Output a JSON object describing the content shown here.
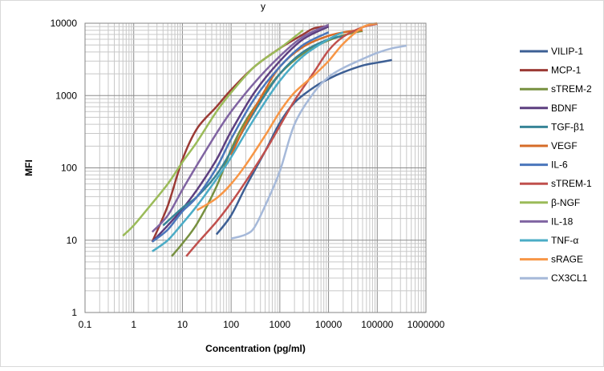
{
  "chart_data": {
    "type": "line",
    "title": "",
    "top_label": "y",
    "xlabel": "Concentration (pg/ml)",
    "ylabel": "MFI",
    "x_scale": "log",
    "y_scale": "log",
    "xlim": [
      0.1,
      1000000
    ],
    "ylim": [
      1,
      10000
    ],
    "x_ticks": [
      "0.1",
      "1",
      "10",
      "100",
      "1000",
      "10000",
      "100000",
      "1000000"
    ],
    "y_ticks": [
      "1",
      "10",
      "100",
      "1000",
      "10000"
    ],
    "grid": true,
    "legend_position": "right",
    "series": [
      {
        "name": "VILIP-1",
        "color": "#3d5f94",
        "points": [
          [
            50,
            12
          ],
          [
            100,
            22
          ],
          [
            200,
            55
          ],
          [
            500,
            170
          ],
          [
            1000,
            420
          ],
          [
            2000,
            800
          ],
          [
            5000,
            1300
          ],
          [
            10000,
            1700
          ],
          [
            20000,
            2100
          ],
          [
            50000,
            2600
          ],
          [
            100000,
            2850
          ],
          [
            200000,
            3100
          ]
        ]
      },
      {
        "name": "MCP-1",
        "color": "#9b3a35",
        "points": [
          [
            2.4,
            9.5
          ],
          [
            5,
            30
          ],
          [
            10,
            130
          ],
          [
            20,
            350
          ],
          [
            50,
            700
          ],
          [
            100,
            1200
          ],
          [
            300,
            2500
          ],
          [
            1000,
            4500
          ],
          [
            3000,
            7000
          ],
          [
            5000,
            8500
          ],
          [
            10000,
            9200
          ]
        ]
      },
      {
        "name": "sTREM-2",
        "color": "#779040",
        "points": [
          [
            6,
            6
          ],
          [
            10,
            9
          ],
          [
            20,
            17
          ],
          [
            50,
            55
          ],
          [
            100,
            180
          ],
          [
            200,
            450
          ],
          [
            500,
            1100
          ],
          [
            1000,
            2000
          ],
          [
            3000,
            3800
          ],
          [
            10000,
            5800
          ],
          [
            30000,
            7300
          ],
          [
            50000,
            7800
          ]
        ]
      },
      {
        "name": "BDNF",
        "color": "#5d3f80",
        "points": [
          [
            2.4,
            9.5
          ],
          [
            5,
            16
          ],
          [
            10,
            27
          ],
          [
            20,
            50
          ],
          [
            50,
            130
          ],
          [
            100,
            320
          ],
          [
            300,
            1100
          ],
          [
            1000,
            3000
          ],
          [
            3000,
            6000
          ],
          [
            10000,
            9000
          ]
        ]
      },
      {
        "name": "TGF-β1",
        "color": "#378497",
        "points": [
          [
            4,
            16
          ],
          [
            10,
            28
          ],
          [
            20,
            40
          ],
          [
            50,
            80
          ],
          [
            100,
            170
          ],
          [
            300,
            600
          ],
          [
            1000,
            2000
          ],
          [
            3000,
            4000
          ],
          [
            10000,
            6000
          ],
          [
            20000,
            6600
          ]
        ]
      },
      {
        "name": "VEGF",
        "color": "#d66c28",
        "points": [
          [
            100,
            150
          ],
          [
            200,
            400
          ],
          [
            500,
            1200
          ],
          [
            1000,
            2500
          ],
          [
            3000,
            4700
          ],
          [
            10000,
            6700
          ],
          [
            30000,
            7800
          ],
          [
            50000,
            8000
          ]
        ]
      },
      {
        "name": "IL-6",
        "color": "#4a76bb",
        "points": [
          [
            2.4,
            9.5
          ],
          [
            5,
            14
          ],
          [
            10,
            25
          ],
          [
            20,
            40
          ],
          [
            50,
            100
          ],
          [
            100,
            250
          ],
          [
            300,
            900
          ],
          [
            1000,
            2500
          ],
          [
            3000,
            5000
          ],
          [
            10000,
            7500
          ]
        ]
      },
      {
        "name": "sTREM-1",
        "color": "#c0504d",
        "points": [
          [
            12,
            6
          ],
          [
            20,
            9
          ],
          [
            50,
            18
          ],
          [
            100,
            33
          ],
          [
            200,
            65
          ],
          [
            500,
            170
          ],
          [
            1000,
            380
          ],
          [
            2000,
            850
          ],
          [
            5000,
            2100
          ],
          [
            10000,
            4200
          ],
          [
            20000,
            6500
          ],
          [
            50000,
            8800
          ],
          [
            100000,
            9800
          ]
        ]
      },
      {
        "name": "β-NGF",
        "color": "#9bbb59",
        "points": [
          [
            0.6,
            11.5
          ],
          [
            1,
            16
          ],
          [
            2,
            28
          ],
          [
            5,
            60
          ],
          [
            10,
            120
          ],
          [
            20,
            230
          ],
          [
            50,
            600
          ],
          [
            100,
            1100
          ],
          [
            300,
            2500
          ],
          [
            1000,
            4500
          ],
          [
            3000,
            8000
          ]
        ]
      },
      {
        "name": "IL-18",
        "color": "#8064a2",
        "points": [
          [
            2.4,
            13
          ],
          [
            5,
            22
          ],
          [
            10,
            50
          ],
          [
            20,
            110
          ],
          [
            50,
            300
          ],
          [
            100,
            600
          ],
          [
            300,
            1500
          ],
          [
            1000,
            3500
          ],
          [
            3000,
            6500
          ],
          [
            10000,
            9500
          ]
        ]
      },
      {
        "name": "TNF-α",
        "color": "#4bacc6",
        "points": [
          [
            2.4,
            7
          ],
          [
            5,
            10
          ],
          [
            10,
            17
          ],
          [
            20,
            30
          ],
          [
            50,
            70
          ],
          [
            100,
            140
          ],
          [
            300,
            480
          ],
          [
            1000,
            1600
          ],
          [
            3000,
            3500
          ],
          [
            10000,
            6000
          ],
          [
            20000,
            7500
          ]
        ]
      },
      {
        "name": "sRAGE",
        "color": "#f79646",
        "points": [
          [
            20,
            26
          ],
          [
            50,
            38
          ],
          [
            100,
            60
          ],
          [
            200,
            110
          ],
          [
            500,
            280
          ],
          [
            1000,
            600
          ],
          [
            2000,
            1100
          ],
          [
            5000,
            1900
          ],
          [
            10000,
            3000
          ],
          [
            20000,
            5200
          ],
          [
            50000,
            8800
          ],
          [
            100000,
            10000
          ]
        ]
      },
      {
        "name": "CX3CL1",
        "color": "#a6b9d9",
        "points": [
          [
            100,
            10.5
          ],
          [
            200,
            12
          ],
          [
            300,
            15
          ],
          [
            500,
            30
          ],
          [
            1000,
            90
          ],
          [
            2000,
            400
          ],
          [
            5000,
            1100
          ],
          [
            10000,
            1800
          ],
          [
            20000,
            2400
          ],
          [
            50000,
            3200
          ],
          [
            100000,
            3900
          ],
          [
            200000,
            4500
          ],
          [
            400000,
            4900
          ]
        ]
      }
    ]
  }
}
